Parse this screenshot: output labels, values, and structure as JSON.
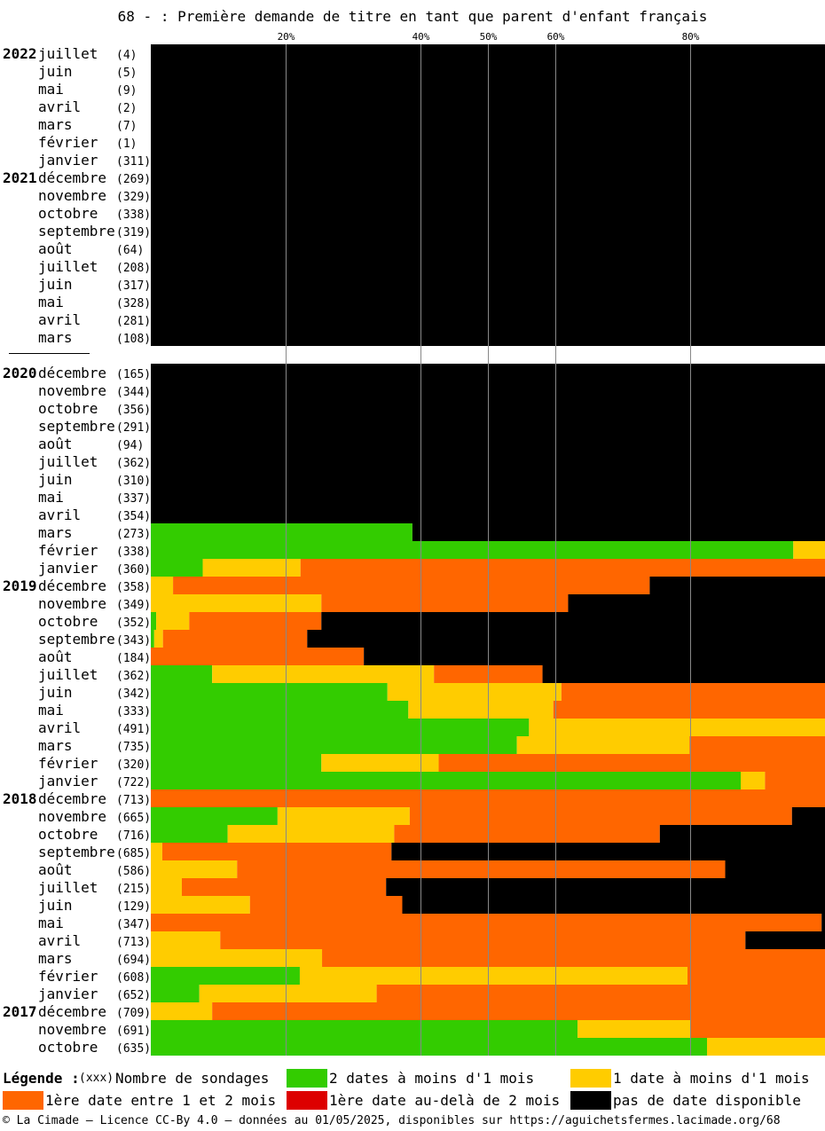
{
  "title": "68 - : Première demande de titre en tant que parent d'enfant français",
  "chart_data": {
    "type": "bar",
    "stacked": true,
    "orientation": "horizontal",
    "xlim": [
      0,
      100
    ],
    "x_ticks": [
      20,
      40,
      50,
      60,
      80
    ],
    "x_tick_labels": [
      "20%",
      "40%",
      "50%",
      "60%",
      "80%"
    ],
    "grid": true,
    "legend_placement": "bottom",
    "series_keys": [
      "two_dates",
      "one_date",
      "first_1_2_months",
      "first_over_2_months",
      "none"
    ],
    "colors": {
      "two_dates": "#33cc00",
      "one_date": "#ffcc00",
      "first_1_2_months": "#ff6600",
      "first_over_2_months": "#dd0000",
      "none": "#000000"
    },
    "rows": [
      {
        "year": "2022",
        "month": "juillet",
        "count": "(4)",
        "values": [
          0,
          0,
          0,
          0,
          100
        ]
      },
      {
        "year": "",
        "month": "juin",
        "count": "(5)",
        "values": [
          0,
          0,
          0,
          0,
          100
        ]
      },
      {
        "year": "",
        "month": "mai",
        "count": "(9)",
        "values": [
          0,
          0,
          0,
          0,
          100
        ]
      },
      {
        "year": "",
        "month": "avril",
        "count": "(2)",
        "values": [
          0,
          0,
          0,
          0,
          100
        ]
      },
      {
        "year": "",
        "month": "mars",
        "count": "(7)",
        "values": [
          0,
          0,
          0,
          0,
          100
        ]
      },
      {
        "year": "",
        "month": "février",
        "count": "(1)",
        "values": [
          0,
          0,
          0,
          0,
          100
        ]
      },
      {
        "year": "",
        "month": "janvier",
        "count": "(311)",
        "values": [
          0,
          0,
          0,
          0,
          100
        ]
      },
      {
        "year": "2021",
        "month": "décembre",
        "count": "(269)",
        "values": [
          0,
          0,
          0,
          0,
          100
        ]
      },
      {
        "year": "",
        "month": "novembre",
        "count": "(329)",
        "values": [
          0,
          0,
          0,
          0,
          100
        ]
      },
      {
        "year": "",
        "month": "octobre",
        "count": "(338)",
        "values": [
          0,
          0,
          0,
          0,
          100
        ]
      },
      {
        "year": "",
        "month": "septembre",
        "count": "(319)",
        "values": [
          0,
          0,
          0,
          0,
          100
        ]
      },
      {
        "year": "",
        "month": "août",
        "count": "(64)",
        "values": [
          0,
          0,
          0,
          0,
          100
        ]
      },
      {
        "year": "",
        "month": "juillet",
        "count": "(208)",
        "values": [
          0,
          0,
          0,
          0,
          100
        ]
      },
      {
        "year": "",
        "month": "juin",
        "count": "(317)",
        "values": [
          0,
          0,
          0,
          0,
          100
        ]
      },
      {
        "year": "",
        "month": "mai",
        "count": "(328)",
        "values": [
          0,
          0,
          0,
          0,
          100
        ]
      },
      {
        "year": "",
        "month": "avril",
        "count": "(281)",
        "values": [
          0,
          0,
          0,
          0,
          100
        ]
      },
      {
        "year": "",
        "month": "mars",
        "count": "(108)",
        "values": [
          0,
          0,
          0,
          0,
          100
        ]
      },
      {
        "gap": true
      },
      {
        "year": "2020",
        "month": "décembre",
        "count": "(165)",
        "values": [
          0,
          0,
          0,
          0,
          100
        ]
      },
      {
        "year": "",
        "month": "novembre",
        "count": "(344)",
        "values": [
          0,
          0,
          0,
          0,
          100
        ]
      },
      {
        "year": "",
        "month": "octobre",
        "count": "(356)",
        "values": [
          0,
          0,
          0,
          0,
          100
        ]
      },
      {
        "year": "",
        "month": "septembre",
        "count": "(291)",
        "values": [
          0,
          0,
          0,
          0,
          100
        ]
      },
      {
        "year": "",
        "month": "août",
        "count": "(94)",
        "values": [
          0,
          0,
          0,
          0,
          100
        ]
      },
      {
        "year": "",
        "month": "juillet",
        "count": "(362)",
        "values": [
          0,
          0,
          0,
          0,
          100
        ]
      },
      {
        "year": "",
        "month": "juin",
        "count": "(310)",
        "values": [
          0,
          0,
          0,
          0,
          100
        ]
      },
      {
        "year": "",
        "month": "mai",
        "count": "(337)",
        "values": [
          0,
          0,
          0,
          0,
          100
        ]
      },
      {
        "year": "",
        "month": "avril",
        "count": "(354)",
        "values": [
          0,
          0,
          0,
          0,
          100
        ]
      },
      {
        "year": "",
        "month": "mars",
        "count": "(273)",
        "values": [
          38.8,
          0,
          0,
          0,
          61.2
        ]
      },
      {
        "year": "",
        "month": "février",
        "count": "(338)",
        "values": [
          95.3,
          4.7,
          0,
          0,
          0
        ]
      },
      {
        "year": "",
        "month": "janvier",
        "count": "(360)",
        "values": [
          7.7,
          14.5,
          77.8,
          0,
          0
        ]
      },
      {
        "year": "2019",
        "month": "décembre",
        "count": "(358)",
        "values": [
          0,
          3.3,
          70.7,
          0,
          26.0
        ]
      },
      {
        "year": "",
        "month": "novembre",
        "count": "(349)",
        "values": [
          0,
          25.3,
          36.6,
          0,
          38.1
        ]
      },
      {
        "year": "",
        "month": "octobre",
        "count": "(352)",
        "values": [
          0.8,
          4.9,
          19.6,
          0,
          74.7
        ]
      },
      {
        "year": "",
        "month": "septembre",
        "count": "(343)",
        "values": [
          0.5,
          1.3,
          21.4,
          0,
          76.8
        ]
      },
      {
        "year": "",
        "month": "août",
        "count": "(184)",
        "values": [
          0,
          0,
          31.6,
          0,
          68.4
        ]
      },
      {
        "year": "",
        "month": "juillet",
        "count": "(362)",
        "values": [
          9.1,
          32.9,
          16.1,
          0,
          41.9
        ]
      },
      {
        "year": "",
        "month": "juin",
        "count": "(342)",
        "values": [
          35.1,
          25.8,
          39.1,
          0,
          0
        ]
      },
      {
        "year": "",
        "month": "mai",
        "count": "(333)",
        "values": [
          38.2,
          21.5,
          40.3,
          0,
          0
        ]
      },
      {
        "year": "",
        "month": "avril",
        "count": "(491)",
        "values": [
          56.1,
          43.9,
          0,
          0,
          0
        ]
      },
      {
        "year": "",
        "month": "mars",
        "count": "(735)",
        "values": [
          54.3,
          25.6,
          20.1,
          0,
          0
        ]
      },
      {
        "year": "",
        "month": "février",
        "count": "(320)",
        "values": [
          25.3,
          17.4,
          57.3,
          0,
          0
        ]
      },
      {
        "year": "",
        "month": "janvier",
        "count": "(722)",
        "values": [
          87.5,
          3.6,
          8.9,
          0,
          0
        ]
      },
      {
        "year": "2018",
        "month": "décembre",
        "count": "(713)",
        "values": [
          0,
          0,
          100,
          0,
          0
        ]
      },
      {
        "year": "",
        "month": "novembre",
        "count": "(665)",
        "values": [
          18.8,
          19.6,
          56.7,
          0,
          4.9
        ]
      },
      {
        "year": "",
        "month": "octobre",
        "count": "(716)",
        "values": [
          11.4,
          24.7,
          39.4,
          0,
          24.5
        ]
      },
      {
        "year": "",
        "month": "septembre",
        "count": "(685)",
        "values": [
          0,
          1.7,
          34.0,
          0,
          64.3
        ]
      },
      {
        "year": "",
        "month": "août",
        "count": "(586)",
        "values": [
          0,
          12.8,
          72.4,
          0,
          14.8
        ]
      },
      {
        "year": "",
        "month": "juillet",
        "count": "(215)",
        "values": [
          0,
          4.6,
          30.3,
          0,
          65.1
        ]
      },
      {
        "year": "",
        "month": "juin",
        "count": "(129)",
        "values": [
          0,
          14.7,
          22.6,
          0,
          62.7
        ]
      },
      {
        "year": "",
        "month": "mai",
        "count": "(347)",
        "values": [
          0,
          0,
          99.5,
          0,
          0.5
        ]
      },
      {
        "year": "",
        "month": "avril",
        "count": "(713)",
        "values": [
          0,
          10.3,
          77.9,
          0,
          11.8
        ]
      },
      {
        "year": "",
        "month": "mars",
        "count": "(694)",
        "values": [
          0,
          25.4,
          74.6,
          0,
          0
        ]
      },
      {
        "year": "",
        "month": "février",
        "count": "(608)",
        "values": [
          22.1,
          57.5,
          20.4,
          0,
          0
        ]
      },
      {
        "year": "",
        "month": "janvier",
        "count": "(652)",
        "values": [
          7.2,
          26.3,
          66.5,
          0,
          0
        ]
      },
      {
        "year": "2017",
        "month": "décembre",
        "count": "(709)",
        "values": [
          0,
          9.1,
          90.9,
          0,
          0
        ]
      },
      {
        "year": "",
        "month": "novembre",
        "count": "(691)",
        "values": [
          63.3,
          16.8,
          19.9,
          0,
          0
        ]
      },
      {
        "year": "",
        "month": "octobre",
        "count": "(635)",
        "values": [
          82.5,
          17.5,
          0,
          0,
          0
        ]
      }
    ]
  },
  "legend": {
    "title": "Légende :",
    "count_marker": "(xxx)",
    "count_label": "Nombre de sondages",
    "items": [
      {
        "key": "two_dates",
        "label": "2 dates à moins d'1 mois"
      },
      {
        "key": "one_date",
        "label": "1 date à moins d'1 mois"
      },
      {
        "key": "first_1_2_months",
        "label": "1ère date entre 1 et 2 mois"
      },
      {
        "key": "first_over_2_months",
        "label": "1ère date au-delà de 2 mois"
      },
      {
        "key": "none",
        "label": "pas de date disponible"
      }
    ]
  },
  "footer": "© La Cimade — Licence CC-By 4.0 — données au 01/05/2025, disponibles sur https://aguichetsfermes.lacimade.org/68"
}
